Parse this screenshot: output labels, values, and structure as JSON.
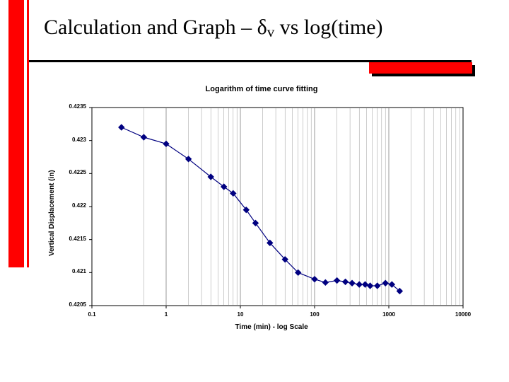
{
  "slide": {
    "title_prefix": "Calculation and Graph – ",
    "title_greek": "δ",
    "title_sub": "v",
    "title_suffix": " vs log(time)",
    "title_fontsize": 30,
    "title_color": "#000000",
    "accent_color": "#ff0000",
    "underline_color": "#000000"
  },
  "chart": {
    "type": "scatter-line-logx",
    "title": "Logarithm of time curve fitting",
    "title_fontsize": 11,
    "xlabel": "Time (min) - log Scale",
    "ylabel": "Vertical Displacement (in)",
    "axis_label_fontsize": 10,
    "tick_fontsize": 8,
    "plot_bg": "#ffffff",
    "grid_color": "#808080",
    "axis_color": "#000000",
    "line_color": "#000080",
    "marker_color": "#000080",
    "marker_shape": "diamond",
    "marker_size": 4,
    "line_width": 1.2,
    "x_log_min": 0.1,
    "x_log_max": 10000,
    "x_ticks": [
      "0.1",
      "1",
      "10",
      "100",
      "1000",
      "10000"
    ],
    "ylim_min": 0.4205,
    "ylim_max": 0.4235,
    "y_ticks": [
      "0.4235",
      "0.423",
      "0.4225",
      "0.422",
      "0.4215",
      "0.421",
      "0.4205"
    ],
    "y_tick_values": [
      0.4235,
      0.423,
      0.4225,
      0.422,
      0.4215,
      0.421,
      0.4205
    ],
    "x_minor_gridlines": [
      0.5,
      2,
      3,
      4,
      5,
      6,
      7,
      8,
      9,
      20,
      30,
      40,
      50,
      60,
      70,
      80,
      90,
      200,
      300,
      400,
      500,
      600,
      700,
      800,
      900,
      2000,
      3000,
      4000,
      5000,
      6000,
      7000,
      8000,
      9000
    ],
    "data": [
      {
        "x": 0.25,
        "y": 0.4232
      },
      {
        "x": 0.5,
        "y": 0.42305
      },
      {
        "x": 1,
        "y": 0.42295
      },
      {
        "x": 2,
        "y": 0.42272
      },
      {
        "x": 4,
        "y": 0.42245
      },
      {
        "x": 6,
        "y": 0.4223
      },
      {
        "x": 8,
        "y": 0.4222
      },
      {
        "x": 12,
        "y": 0.42195
      },
      {
        "x": 16,
        "y": 0.42175
      },
      {
        "x": 25,
        "y": 0.42145
      },
      {
        "x": 40,
        "y": 0.4212
      },
      {
        "x": 60,
        "y": 0.421
      },
      {
        "x": 100,
        "y": 0.4209
      },
      {
        "x": 140,
        "y": 0.42085
      },
      {
        "x": 200,
        "y": 0.42088
      },
      {
        "x": 260,
        "y": 0.42086
      },
      {
        "x": 320,
        "y": 0.42084
      },
      {
        "x": 400,
        "y": 0.42082
      },
      {
        "x": 480,
        "y": 0.42082
      },
      {
        "x": 560,
        "y": 0.4208
      },
      {
        "x": 700,
        "y": 0.4208
      },
      {
        "x": 900,
        "y": 0.42084
      },
      {
        "x": 1100,
        "y": 0.42082
      },
      {
        "x": 1400,
        "y": 0.42072
      }
    ]
  }
}
